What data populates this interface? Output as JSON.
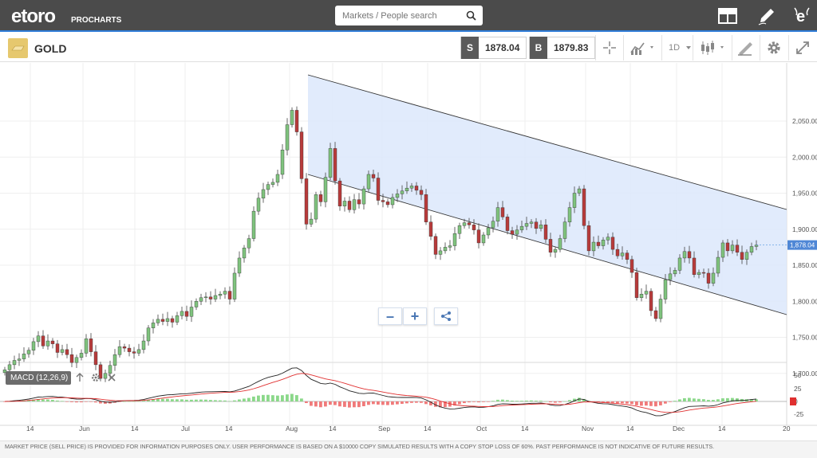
{
  "header": {
    "logo_text": "etoro",
    "logo_sub": "PROCHARTS",
    "search": {
      "placeholder": "Markets / People search"
    },
    "icons": [
      "layout-icon",
      "pencil-icon",
      "etoro-e-icon"
    ]
  },
  "instrument": {
    "name": "GOLD",
    "sell_tag": "S",
    "sell_price": "1878.04",
    "buy_tag": "B",
    "buy_price": "1879.83",
    "timeframe": "1D"
  },
  "macd": {
    "label": "MACD (12,26,9)",
    "y_ticks": [
      "50",
      "25",
      "0",
      "-25"
    ]
  },
  "footer": {
    "disclaimer": "MARKET PRICE (SELL PRICE) IS PROVIDED FOR INFORMATION PURPOSES ONLY. USER PERFORMANCE IS BASED ON A $10000 COPY SIMULATED RESULTS WITH A COPY STOP LOSS OF 60%. PAST PERFORMANCE IS NOT INDICATIVE OF FUTURE RESULTS."
  },
  "chart_data": {
    "type": "candlestick",
    "y_ticks": [
      "2,050.00",
      "2,000.00",
      "1,950.00",
      "1,900.00",
      "1,850.00",
      "1,800.00",
      "1,750.00",
      "1,700.00"
    ],
    "y_tick_values": [
      2050,
      2000,
      1950,
      1900,
      1850,
      1800,
      1750,
      1700
    ],
    "x_ticks": [
      "14",
      "Jun",
      "14",
      "Jul",
      "14",
      "Aug",
      "14",
      "Sep",
      "14",
      "Oct",
      "14",
      "Nov",
      "14",
      "Dec",
      "14",
      "20"
    ],
    "last_price_label": "1,878.04",
    "last_price": 1878.04,
    "closes": [
      1705,
      1712,
      1718,
      1720,
      1727,
      1732,
      1744,
      1752,
      1738,
      1745,
      1741,
      1729,
      1733,
      1726,
      1715,
      1722,
      1728,
      1748,
      1730,
      1712,
      1693,
      1700,
      1711,
      1726,
      1737,
      1735,
      1730,
      1728,
      1733,
      1745,
      1763,
      1770,
      1775,
      1772,
      1776,
      1771,
      1780,
      1786,
      1779,
      1792,
      1800,
      1805,
      1806,
      1803,
      1808,
      1810,
      1814,
      1803,
      1839,
      1860,
      1874,
      1887,
      1925,
      1943,
      1955,
      1962,
      1965,
      1976,
      2010,
      2045,
      2065,
      2035,
      1970,
      1907,
      1914,
      1948,
      1938,
      1972,
      2012,
      1967,
      1932,
      1939,
      1927,
      1941,
      1935,
      1956,
      1976,
      1971,
      1940,
      1938,
      1934,
      1944,
      1949,
      1953,
      1957,
      1960,
      1954,
      1948,
      1910,
      1890,
      1865,
      1870,
      1875,
      1877,
      1894,
      1905,
      1909,
      1906,
      1899,
      1881,
      1892,
      1902,
      1911,
      1930,
      1917,
      1898,
      1893,
      1899,
      1904,
      1908,
      1910,
      1901,
      1906,
      1886,
      1868,
      1872,
      1887,
      1910,
      1930,
      1950,
      1956,
      1905,
      1870,
      1882,
      1877,
      1885,
      1889,
      1872,
      1863,
      1867,
      1858,
      1840,
      1805,
      1810,
      1814,
      1787,
      1776,
      1803,
      1830,
      1838,
      1843,
      1860,
      1869,
      1860,
      1837,
      1840,
      1839,
      1825,
      1839,
      1861,
      1881,
      1870,
      1878,
      1868,
      1858,
      1868,
      1876,
      1878
    ]
  }
}
